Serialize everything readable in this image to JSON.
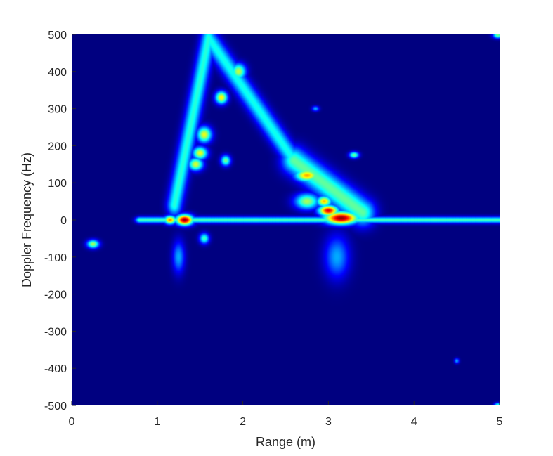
{
  "chart_data": {
    "type": "heatmap",
    "title": "",
    "xlabel": "Range (m)",
    "ylabel": "Doppler Frequency (Hz)",
    "xlim": [
      0,
      5
    ],
    "ylim": [
      -500,
      500
    ],
    "x_ticks": [
      0,
      1,
      2,
      3,
      4,
      5
    ],
    "x_tick_labels": [
      "0",
      "1",
      "2",
      "3",
      "4",
      "5"
    ],
    "y_ticks": [
      500,
      400,
      300,
      200,
      100,
      0,
      -100,
      -200,
      -300,
      -400,
      -500
    ],
    "y_tick_labels": [
      "500",
      "400",
      "300",
      "200",
      "100",
      "0",
      "-100",
      "-200",
      "-300",
      "-400",
      "-500"
    ],
    "colormap": "jet",
    "background_level": 0.0,
    "grid": false,
    "features": [
      {
        "kind": "line",
        "from_range": 0.8,
        "to_range": 5.0,
        "doppler": 0,
        "level": 0.45,
        "range_spread": 0.04,
        "doppler_spread": 6
      },
      {
        "kind": "line",
        "from_range": 1.2,
        "to_range": 1.6,
        "doppler_start": 40,
        "doppler_end": 490,
        "level": 0.42,
        "range_spread": 0.06,
        "doppler_spread": 20
      },
      {
        "kind": "line",
        "from_range": 1.6,
        "to_range": 2.6,
        "doppler_start": 490,
        "doppler_end": 160,
        "level": 0.4,
        "range_spread": 0.06,
        "doppler_spread": 20
      },
      {
        "kind": "line",
        "from_range": 2.6,
        "to_range": 3.4,
        "doppler_start": 160,
        "doppler_end": 20,
        "level": 0.48,
        "range_spread": 0.1,
        "doppler_spread": 25
      },
      {
        "kind": "spot",
        "range": 1.32,
        "doppler": 0,
        "level": 1.0,
        "range_spread": 0.07,
        "doppler_spread": 10
      },
      {
        "kind": "spot",
        "range": 1.15,
        "doppler": 0,
        "level": 0.75,
        "range_spread": 0.05,
        "doppler_spread": 8
      },
      {
        "kind": "spot",
        "range": 3.15,
        "doppler": 5,
        "level": 1.0,
        "range_spread": 0.14,
        "doppler_spread": 12
      },
      {
        "kind": "spot",
        "range": 3.0,
        "doppler": 25,
        "level": 0.92,
        "range_spread": 0.08,
        "doppler_spread": 10
      },
      {
        "kind": "spot",
        "range": 2.95,
        "doppler": 50,
        "level": 0.7,
        "range_spread": 0.06,
        "doppler_spread": 10
      },
      {
        "kind": "spot",
        "range": 2.75,
        "doppler": 120,
        "level": 0.72,
        "range_spread": 0.1,
        "doppler_spread": 12
      },
      {
        "kind": "spot",
        "range": 2.75,
        "doppler": 50,
        "level": 0.55,
        "range_spread": 0.1,
        "doppler_spread": 15
      },
      {
        "kind": "spot",
        "range": 1.55,
        "doppler": 230,
        "level": 0.62,
        "range_spread": 0.06,
        "doppler_spread": 15
      },
      {
        "kind": "spot",
        "range": 1.5,
        "doppler": 180,
        "level": 0.62,
        "range_spread": 0.06,
        "doppler_spread": 12
      },
      {
        "kind": "spot",
        "range": 1.45,
        "doppler": 150,
        "level": 0.6,
        "range_spread": 0.06,
        "doppler_spread": 12
      },
      {
        "kind": "spot",
        "range": 1.75,
        "doppler": 330,
        "level": 0.65,
        "range_spread": 0.05,
        "doppler_spread": 12
      },
      {
        "kind": "spot",
        "range": 1.95,
        "doppler": 400,
        "level": 0.58,
        "range_spread": 0.06,
        "doppler_spread": 15
      },
      {
        "kind": "spot",
        "range": 1.8,
        "doppler": 160,
        "level": 0.5,
        "range_spread": 0.04,
        "doppler_spread": 10
      },
      {
        "kind": "spot",
        "range": 1.55,
        "doppler": -50,
        "level": 0.45,
        "range_spread": 0.04,
        "doppler_spread": 10
      },
      {
        "kind": "spot",
        "range": 0.25,
        "doppler": -65,
        "level": 0.55,
        "range_spread": 0.05,
        "doppler_spread": 8
      },
      {
        "kind": "spot",
        "range": 3.3,
        "doppler": 175,
        "level": 0.5,
        "range_spread": 0.04,
        "doppler_spread": 6
      },
      {
        "kind": "spot",
        "range": 4.98,
        "doppler": 498,
        "level": 0.5,
        "range_spread": 0.04,
        "doppler_spread": 6
      },
      {
        "kind": "spot",
        "range": 4.98,
        "doppler": -498,
        "level": 0.4,
        "range_spread": 0.03,
        "doppler_spread": 4
      },
      {
        "kind": "spot",
        "range": 4.5,
        "doppler": -380,
        "level": 0.3,
        "range_spread": 0.02,
        "doppler_spread": 5
      },
      {
        "kind": "spot",
        "range": 2.85,
        "doppler": 300,
        "level": 0.3,
        "range_spread": 0.03,
        "doppler_spread": 5
      },
      {
        "kind": "spot",
        "range": 1.25,
        "doppler": -100,
        "level": 0.3,
        "range_spread": 0.05,
        "doppler_spread": 30
      },
      {
        "kind": "spot",
        "range": 3.1,
        "doppler": -100,
        "level": 0.3,
        "range_spread": 0.1,
        "doppler_spread": 40
      }
    ]
  }
}
